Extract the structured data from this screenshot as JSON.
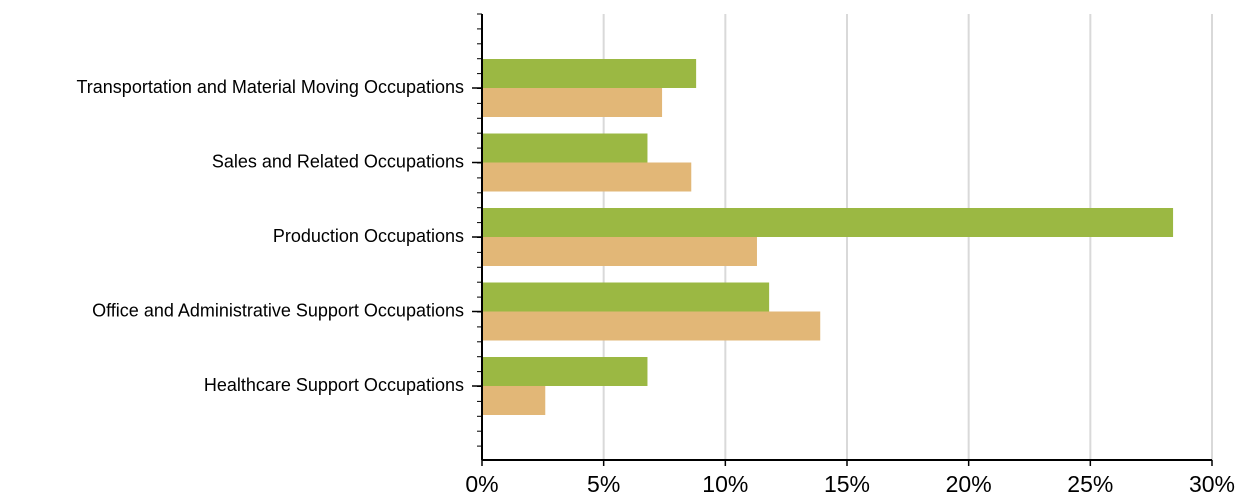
{
  "chart_data": {
    "type": "hbar",
    "categories": [
      "Transportation and Material Moving Occupations",
      "Sales and Related Occupations",
      "Production Occupations",
      "Office and Administrative Support Occupations",
      "Healthcare Support Occupations"
    ],
    "series": [
      {
        "color": "#9bb843",
        "values": [
          8.8,
          6.8,
          28.4,
          11.8,
          6.8
        ]
      },
      {
        "color": "#e2b777",
        "values": [
          7.4,
          8.6,
          11.3,
          13.9,
          2.6
        ]
      }
    ],
    "xlim": [
      0,
      30
    ],
    "xticks": [
      {
        "value": 0,
        "label": "0%"
      },
      {
        "value": 5,
        "label": "5%"
      },
      {
        "value": 10,
        "label": "10%"
      },
      {
        "value": 15,
        "label": "15%"
      },
      {
        "value": 20,
        "label": "20%"
      },
      {
        "value": 25,
        "label": "25%"
      },
      {
        "value": 30,
        "label": "30%"
      }
    ],
    "grid": true
  }
}
